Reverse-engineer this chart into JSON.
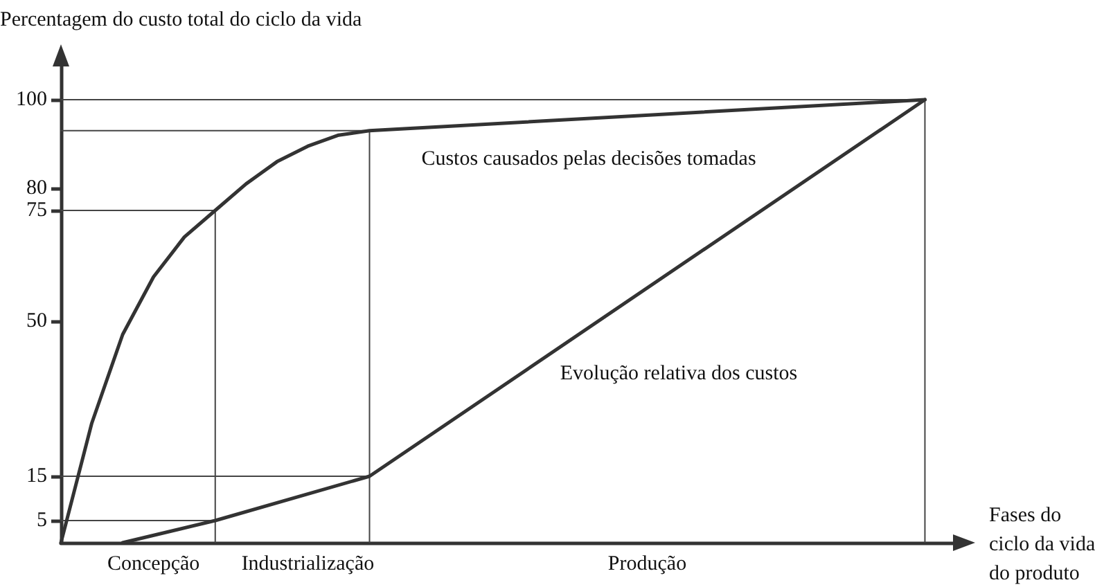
{
  "chart_data": {
    "type": "line",
    "ylabel": "Percentagem do custo total do ciclo da vida",
    "xlabel": "Fases do ciclo da vida do produto",
    "categories": [
      null,
      null,
      null,
      "Concepção",
      null,
      null,
      null,
      null,
      "Industrialização",
      null,
      null,
      null,
      null,
      null,
      null,
      null,
      null,
      null,
      null,
      "Produção",
      null,
      null,
      null,
      null,
      null,
      null,
      null,
      null,
      null,
      null
    ],
    "ylim": [
      0,
      110
    ],
    "yticks": [
      5,
      15,
      50,
      75,
      80,
      100
    ],
    "series": [
      {
        "color": "#333333",
        "values": [
          0,
          27,
          47,
          60,
          69,
          75,
          81,
          86,
          89.5,
          92,
          93,
          null,
          null,
          null,
          null,
          null,
          null,
          null,
          null,
          null,
          null,
          null,
          null,
          null,
          null,
          null,
          null,
          null,
          100,
          null
        ]
      },
      {
        "color": "#333333",
        "values": [
          null,
          null,
          0,
          null,
          null,
          5,
          null,
          null,
          null,
          null,
          15,
          null,
          null,
          null,
          null,
          null,
          null,
          null,
          null,
          null,
          null,
          null,
          null,
          null,
          null,
          null,
          null,
          null,
          100,
          null
        ]
      },
      {
        "type": "bar",
        "color": "#444444",
        "values": [
          null,
          null,
          null,
          null,
          null,
          75,
          null,
          null,
          null,
          null,
          93,
          null,
          null,
          null,
          null,
          null,
          null,
          null,
          null,
          null,
          null,
          null,
          null,
          null,
          null,
          null,
          null,
          null,
          100,
          null
        ]
      },
      {
        "type": "step",
        "color": "#444444",
        "values": [
          100,
          null,
          null,
          null,
          null,
          null,
          null,
          null,
          null,
          null,
          null,
          null,
          null,
          null,
          null,
          null,
          null,
          null,
          null,
          null,
          null,
          null,
          null,
          null,
          null,
          null,
          null,
          null,
          100,
          null
        ]
      },
      {
        "type": "step",
        "color": "#444444",
        "values": [
          93,
          null,
          null,
          null,
          null,
          null,
          null,
          null,
          null,
          null,
          93,
          null,
          null,
          null,
          null,
          null,
          null,
          null,
          null,
          null,
          null,
          null,
          null,
          null,
          null,
          null,
          null,
          null,
          null,
          null
        ]
      },
      {
        "type": "step",
        "color": "#444444",
        "values": [
          75,
          null,
          null,
          null,
          null,
          75,
          null,
          null,
          null,
          null,
          null,
          null,
          null,
          null,
          null,
          null,
          null,
          null,
          null,
          null,
          null,
          null,
          null,
          null,
          null,
          null,
          null,
          null,
          null,
          null
        ]
      },
      {
        "type": "step",
        "color": "#444444",
        "values": [
          15,
          null,
          null,
          null,
          null,
          null,
          null,
          null,
          null,
          null,
          15,
          null,
          null,
          null,
          null,
          null,
          null,
          null,
          null,
          null,
          null,
          null,
          null,
          null,
          null,
          null,
          null,
          null,
          null,
          null
        ]
      },
      {
        "type": "step",
        "color": "#444444",
        "values": [
          5,
          null,
          null,
          null,
          null,
          5,
          null,
          null,
          null,
          null,
          null,
          null,
          null,
          null,
          null,
          null,
          null,
          null,
          null,
          null,
          null,
          null,
          null,
          null,
          null,
          null,
          null,
          null,
          null,
          null
        ]
      }
    ],
    "annotations": [
      "Custos causados pelas decisões tomadas",
      "Evolução relativa dos custos"
    ],
    "grid": false,
    "marker": "none",
    "line_style": "solid"
  }
}
